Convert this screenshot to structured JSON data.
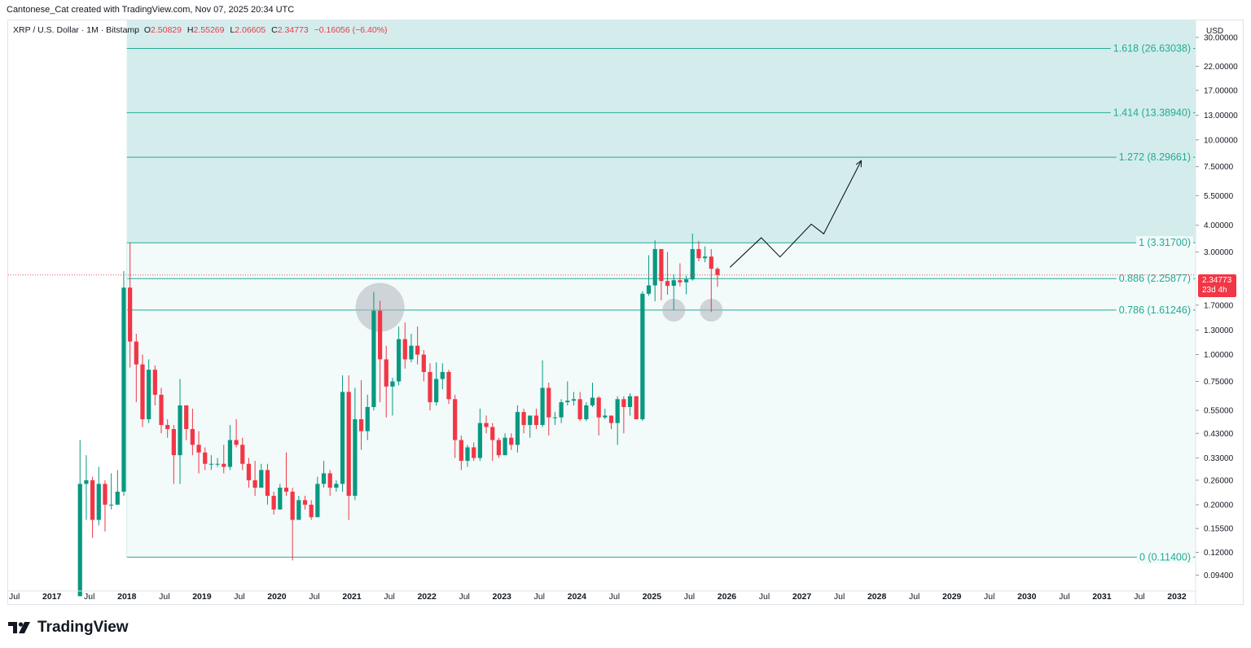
{
  "credit": "Cantonese_Cat created with TradingView.com, Nov 07, 2025 20:34 UTC",
  "legend": {
    "symbol": "XRP / U.S. Dollar · 1M · Bitstamp",
    "o_label": "O",
    "o": "2.50829",
    "h_label": "H",
    "h": "2.55269",
    "l_label": "L",
    "l": "2.06605",
    "c_label": "C",
    "c": "2.34773",
    "change": "−0.16056 (−6.40%)"
  },
  "currency": "USD",
  "last_price": {
    "price": "2.34773",
    "countdown": "23d 4h"
  },
  "brand": "TradingView",
  "colors": {
    "up": "#089981",
    "down": "#f23645",
    "fib": "#22ab94",
    "fib_fill_upper": "#d4edec",
    "fib_fill_lower": "#f2fafa",
    "axis_text": "#131722"
  },
  "chart_data": {
    "type": "candlestick",
    "y_scale": "log",
    "y_range": [
      0.085,
      36
    ],
    "x_range": [
      "2016-06",
      "2032-04"
    ],
    "y_ticks": [
      "30.00000",
      "22.00000",
      "17.00000",
      "13.00000",
      "10.00000",
      "7.50000",
      "5.50000",
      "4.00000",
      "3.00000",
      "1.70000",
      "1.30000",
      "1.00000",
      "0.75000",
      "0.55000",
      "0.43000",
      "0.33000",
      "0.26000",
      "0.20000",
      "0.15500",
      "0.12000",
      "0.09400"
    ],
    "x_ticks": [
      {
        "label": "Jul",
        "date": "2016-07"
      },
      {
        "label": "2017",
        "date": "2017-01"
      },
      {
        "label": "Jul",
        "date": "2017-07"
      },
      {
        "label": "2018",
        "date": "2018-01"
      },
      {
        "label": "Jul",
        "date": "2018-07"
      },
      {
        "label": "2019",
        "date": "2019-01"
      },
      {
        "label": "Jul",
        "date": "2019-07"
      },
      {
        "label": "2020",
        "date": "2020-01"
      },
      {
        "label": "Jul",
        "date": "2020-07"
      },
      {
        "label": "2021",
        "date": "2021-01"
      },
      {
        "label": "Jul",
        "date": "2021-07"
      },
      {
        "label": "2022",
        "date": "2022-01"
      },
      {
        "label": "Jul",
        "date": "2022-07"
      },
      {
        "label": "2023",
        "date": "2023-01"
      },
      {
        "label": "Jul",
        "date": "2023-07"
      },
      {
        "label": "2024",
        "date": "2024-01"
      },
      {
        "label": "Jul",
        "date": "2024-07"
      },
      {
        "label": "2025",
        "date": "2025-01"
      },
      {
        "label": "Jul",
        "date": "2025-07"
      },
      {
        "label": "2026",
        "date": "2026-01"
      },
      {
        "label": "Jul",
        "date": "2026-07"
      },
      {
        "label": "2027",
        "date": "2027-01"
      },
      {
        "label": "Jul",
        "date": "2027-07"
      },
      {
        "label": "2028",
        "date": "2028-01"
      },
      {
        "label": "Jul",
        "date": "2028-07"
      },
      {
        "label": "2029",
        "date": "2029-01"
      },
      {
        "label": "Jul",
        "date": "2029-07"
      },
      {
        "label": "2030",
        "date": "2030-01"
      },
      {
        "label": "Jul",
        "date": "2030-07"
      },
      {
        "label": "2031",
        "date": "2031-01"
      },
      {
        "label": "Jul",
        "date": "2031-07"
      },
      {
        "label": "2032",
        "date": "2032-01"
      }
    ],
    "fib_start_date": "2018-01",
    "fib_levels": [
      {
        "label": "1.618 (26.63038)",
        "value": 26.63038
      },
      {
        "label": "1.414 (13.38940)",
        "value": 13.3894
      },
      {
        "label": "1.272 (8.29661)",
        "value": 8.29661
      },
      {
        "label": "1 (3.31700)",
        "value": 3.317
      },
      {
        "label": "0.886 (2.25877)",
        "value": 2.25877
      },
      {
        "label": "0.786 (1.61246)",
        "value": 1.61246
      },
      {
        "label": "0 (0.11400)",
        "value": 0.114
      }
    ],
    "candles": [
      {
        "d": "2017-05",
        "o": 0.075,
        "h": 0.4,
        "l": 0.075,
        "c": 0.25
      },
      {
        "d": "2017-06",
        "o": 0.25,
        "h": 0.34,
        "l": 0.17,
        "c": 0.26
      },
      {
        "d": "2017-07",
        "o": 0.26,
        "h": 0.27,
        "l": 0.14,
        "c": 0.17
      },
      {
        "d": "2017-08",
        "o": 0.17,
        "h": 0.3,
        "l": 0.16,
        "c": 0.25
      },
      {
        "d": "2017-09",
        "o": 0.25,
        "h": 0.26,
        "l": 0.15,
        "c": 0.2
      },
      {
        "d": "2017-10",
        "o": 0.2,
        "h": 0.28,
        "l": 0.19,
        "c": 0.2
      },
      {
        "d": "2017-11",
        "o": 0.2,
        "h": 0.29,
        "l": 0.2,
        "c": 0.23
      },
      {
        "d": "2017-12",
        "o": 0.23,
        "h": 2.45,
        "l": 0.22,
        "c": 2.05
      },
      {
        "d": "2018-01",
        "o": 2.05,
        "h": 3.317,
        "l": 0.87,
        "c": 1.15
      },
      {
        "d": "2018-02",
        "o": 1.15,
        "h": 1.25,
        "l": 0.6,
        "c": 0.9
      },
      {
        "d": "2018-03",
        "o": 0.9,
        "h": 1.0,
        "l": 0.46,
        "c": 0.5
      },
      {
        "d": "2018-04",
        "o": 0.5,
        "h": 0.95,
        "l": 0.48,
        "c": 0.85
      },
      {
        "d": "2018-05",
        "o": 0.85,
        "h": 0.89,
        "l": 0.58,
        "c": 0.65
      },
      {
        "d": "2018-06",
        "o": 0.65,
        "h": 0.7,
        "l": 0.43,
        "c": 0.47
      },
      {
        "d": "2018-07",
        "o": 0.47,
        "h": 0.5,
        "l": 0.41,
        "c": 0.45
      },
      {
        "d": "2018-08",
        "o": 0.45,
        "h": 0.47,
        "l": 0.25,
        "c": 0.34
      },
      {
        "d": "2018-09",
        "o": 0.34,
        "h": 0.77,
        "l": 0.25,
        "c": 0.58
      },
      {
        "d": "2018-10",
        "o": 0.58,
        "h": 0.58,
        "l": 0.4,
        "c": 0.45
      },
      {
        "d": "2018-11",
        "o": 0.45,
        "h": 0.56,
        "l": 0.34,
        "c": 0.38
      },
      {
        "d": "2018-12",
        "o": 0.38,
        "h": 0.44,
        "l": 0.28,
        "c": 0.35
      },
      {
        "d": "2019-01",
        "o": 0.35,
        "h": 0.37,
        "l": 0.29,
        "c": 0.31
      },
      {
        "d": "2019-02",
        "o": 0.31,
        "h": 0.34,
        "l": 0.29,
        "c": 0.31
      },
      {
        "d": "2019-03",
        "o": 0.31,
        "h": 0.33,
        "l": 0.3,
        "c": 0.31
      },
      {
        "d": "2019-04",
        "o": 0.31,
        "h": 0.38,
        "l": 0.28,
        "c": 0.3
      },
      {
        "d": "2019-05",
        "o": 0.3,
        "h": 0.47,
        "l": 0.29,
        "c": 0.4
      },
      {
        "d": "2019-06",
        "o": 0.4,
        "h": 0.5,
        "l": 0.37,
        "c": 0.38
      },
      {
        "d": "2019-07",
        "o": 0.38,
        "h": 0.41,
        "l": 0.29,
        "c": 0.31
      },
      {
        "d": "2019-08",
        "o": 0.31,
        "h": 0.33,
        "l": 0.24,
        "c": 0.26
      },
      {
        "d": "2019-09",
        "o": 0.26,
        "h": 0.32,
        "l": 0.22,
        "c": 0.24
      },
      {
        "d": "2019-10",
        "o": 0.24,
        "h": 0.31,
        "l": 0.24,
        "c": 0.29
      },
      {
        "d": "2019-11",
        "o": 0.29,
        "h": 0.31,
        "l": 0.2,
        "c": 0.22
      },
      {
        "d": "2019-12",
        "o": 0.22,
        "h": 0.23,
        "l": 0.18,
        "c": 0.19
      },
      {
        "d": "2020-01",
        "o": 0.19,
        "h": 0.25,
        "l": 0.19,
        "c": 0.24
      },
      {
        "d": "2020-02",
        "o": 0.24,
        "h": 0.35,
        "l": 0.22,
        "c": 0.23
      },
      {
        "d": "2020-03",
        "o": 0.23,
        "h": 0.24,
        "l": 0.11,
        "c": 0.17
      },
      {
        "d": "2020-04",
        "o": 0.17,
        "h": 0.22,
        "l": 0.17,
        "c": 0.21
      },
      {
        "d": "2020-05",
        "o": 0.21,
        "h": 0.22,
        "l": 0.19,
        "c": 0.2
      },
      {
        "d": "2020-06",
        "o": 0.2,
        "h": 0.21,
        "l": 0.17,
        "c": 0.175
      },
      {
        "d": "2020-07",
        "o": 0.175,
        "h": 0.27,
        "l": 0.175,
        "c": 0.25
      },
      {
        "d": "2020-08",
        "o": 0.25,
        "h": 0.32,
        "l": 0.24,
        "c": 0.28
      },
      {
        "d": "2020-09",
        "o": 0.28,
        "h": 0.29,
        "l": 0.22,
        "c": 0.24
      },
      {
        "d": "2020-10",
        "o": 0.24,
        "h": 0.26,
        "l": 0.23,
        "c": 0.25
      },
      {
        "d": "2020-11",
        "o": 0.25,
        "h": 0.8,
        "l": 0.23,
        "c": 0.67
      },
      {
        "d": "2020-12",
        "o": 0.67,
        "h": 0.8,
        "l": 0.17,
        "c": 0.22
      },
      {
        "d": "2021-01",
        "o": 0.22,
        "h": 0.7,
        "l": 0.21,
        "c": 0.5
      },
      {
        "d": "2021-02",
        "o": 0.5,
        "h": 0.76,
        "l": 0.36,
        "c": 0.44
      },
      {
        "d": "2021-03",
        "o": 0.44,
        "h": 0.65,
        "l": 0.4,
        "c": 0.57
      },
      {
        "d": "2021-04",
        "o": 0.57,
        "h": 1.96,
        "l": 0.55,
        "c": 1.6
      },
      {
        "d": "2021-05",
        "o": 1.6,
        "h": 1.78,
        "l": 0.6,
        "c": 0.95
      },
      {
        "d": "2021-06",
        "o": 0.95,
        "h": 1.1,
        "l": 0.51,
        "c": 0.71
      },
      {
        "d": "2021-07",
        "o": 0.71,
        "h": 0.78,
        "l": 0.52,
        "c": 0.75
      },
      {
        "d": "2021-08",
        "o": 0.75,
        "h": 1.35,
        "l": 0.72,
        "c": 1.18
      },
      {
        "d": "2021-09",
        "o": 1.18,
        "h": 1.41,
        "l": 0.86,
        "c": 0.95
      },
      {
        "d": "2021-10",
        "o": 0.95,
        "h": 1.25,
        "l": 0.92,
        "c": 1.1
      },
      {
        "d": "2021-11",
        "o": 1.1,
        "h": 1.35,
        "l": 0.9,
        "c": 1.0
      },
      {
        "d": "2021-12",
        "o": 1.0,
        "h": 1.05,
        "l": 0.75,
        "c": 0.83
      },
      {
        "d": "2022-01",
        "o": 0.83,
        "h": 0.91,
        "l": 0.55,
        "c": 0.6
      },
      {
        "d": "2022-02",
        "o": 0.6,
        "h": 0.92,
        "l": 0.58,
        "c": 0.77
      },
      {
        "d": "2022-03",
        "o": 0.77,
        "h": 0.91,
        "l": 0.69,
        "c": 0.83
      },
      {
        "d": "2022-04",
        "o": 0.83,
        "h": 0.85,
        "l": 0.59,
        "c": 0.62
      },
      {
        "d": "2022-05",
        "o": 0.62,
        "h": 0.65,
        "l": 0.33,
        "c": 0.4
      },
      {
        "d": "2022-06",
        "o": 0.4,
        "h": 0.42,
        "l": 0.29,
        "c": 0.32
      },
      {
        "d": "2022-07",
        "o": 0.32,
        "h": 0.38,
        "l": 0.3,
        "c": 0.37
      },
      {
        "d": "2022-08",
        "o": 0.37,
        "h": 0.39,
        "l": 0.32,
        "c": 0.33
      },
      {
        "d": "2022-09",
        "o": 0.33,
        "h": 0.56,
        "l": 0.32,
        "c": 0.48
      },
      {
        "d": "2022-10",
        "o": 0.48,
        "h": 0.52,
        "l": 0.43,
        "c": 0.46
      },
      {
        "d": "2022-11",
        "o": 0.46,
        "h": 0.48,
        "l": 0.32,
        "c": 0.4
      },
      {
        "d": "2022-12",
        "o": 0.4,
        "h": 0.41,
        "l": 0.33,
        "c": 0.34
      },
      {
        "d": "2023-01",
        "o": 0.34,
        "h": 0.43,
        "l": 0.34,
        "c": 0.41
      },
      {
        "d": "2023-02",
        "o": 0.41,
        "h": 0.43,
        "l": 0.36,
        "c": 0.38
      },
      {
        "d": "2023-03",
        "o": 0.38,
        "h": 0.58,
        "l": 0.35,
        "c": 0.54
      },
      {
        "d": "2023-04",
        "o": 0.54,
        "h": 0.56,
        "l": 0.43,
        "c": 0.47
      },
      {
        "d": "2023-05",
        "o": 0.47,
        "h": 0.52,
        "l": 0.41,
        "c": 0.52
      },
      {
        "d": "2023-06",
        "o": 0.52,
        "h": 0.56,
        "l": 0.45,
        "c": 0.47
      },
      {
        "d": "2023-07",
        "o": 0.47,
        "h": 0.94,
        "l": 0.46,
        "c": 0.7
      },
      {
        "d": "2023-08",
        "o": 0.7,
        "h": 0.74,
        "l": 0.42,
        "c": 0.51
      },
      {
        "d": "2023-09",
        "o": 0.51,
        "h": 0.54,
        "l": 0.47,
        "c": 0.51
      },
      {
        "d": "2023-10",
        "o": 0.51,
        "h": 0.62,
        "l": 0.48,
        "c": 0.6
      },
      {
        "d": "2023-11",
        "o": 0.6,
        "h": 0.75,
        "l": 0.58,
        "c": 0.61
      },
      {
        "d": "2023-12",
        "o": 0.61,
        "h": 0.67,
        "l": 0.58,
        "c": 0.62
      },
      {
        "d": "2024-01",
        "o": 0.62,
        "h": 0.67,
        "l": 0.49,
        "c": 0.5
      },
      {
        "d": "2024-02",
        "o": 0.5,
        "h": 0.6,
        "l": 0.49,
        "c": 0.58
      },
      {
        "d": "2024-03",
        "o": 0.58,
        "h": 0.74,
        "l": 0.57,
        "c": 0.63
      },
      {
        "d": "2024-04",
        "o": 0.63,
        "h": 0.64,
        "l": 0.42,
        "c": 0.51
      },
      {
        "d": "2024-05",
        "o": 0.51,
        "h": 0.56,
        "l": 0.5,
        "c": 0.52
      },
      {
        "d": "2024-06",
        "o": 0.52,
        "h": 0.52,
        "l": 0.45,
        "c": 0.48
      },
      {
        "d": "2024-07",
        "o": 0.48,
        "h": 0.64,
        "l": 0.38,
        "c": 0.62
      },
      {
        "d": "2024-08",
        "o": 0.62,
        "h": 0.64,
        "l": 0.43,
        "c": 0.57
      },
      {
        "d": "2024-09",
        "o": 0.57,
        "h": 0.66,
        "l": 0.52,
        "c": 0.64
      },
      {
        "d": "2024-10",
        "o": 0.64,
        "h": 0.64,
        "l": 0.5,
        "c": 0.5
      },
      {
        "d": "2024-11",
        "o": 0.5,
        "h": 1.97,
        "l": 0.49,
        "c": 1.92
      },
      {
        "d": "2024-12",
        "o": 1.92,
        "h": 2.9,
        "l": 1.88,
        "c": 2.1
      },
      {
        "d": "2025-01",
        "o": 2.1,
        "h": 3.4,
        "l": 1.77,
        "c": 3.1
      },
      {
        "d": "2025-02",
        "o": 3.1,
        "h": 3.1,
        "l": 1.79,
        "c": 2.2
      },
      {
        "d": "2025-03",
        "o": 2.2,
        "h": 3.0,
        "l": 1.9,
        "c": 2.09
      },
      {
        "d": "2025-04",
        "o": 2.09,
        "h": 2.36,
        "l": 1.61,
        "c": 2.22
      },
      {
        "d": "2025-05",
        "o": 2.22,
        "h": 2.66,
        "l": 2.08,
        "c": 2.17
      },
      {
        "d": "2025-06",
        "o": 2.17,
        "h": 2.33,
        "l": 1.91,
        "c": 2.24
      },
      {
        "d": "2025-07",
        "o": 2.24,
        "h": 3.66,
        "l": 2.21,
        "c": 3.1
      },
      {
        "d": "2025-08",
        "o": 3.1,
        "h": 3.38,
        "l": 2.72,
        "c": 2.81
      },
      {
        "d": "2025-09",
        "o": 2.81,
        "h": 3.19,
        "l": 2.69,
        "c": 2.86
      },
      {
        "d": "2025-10",
        "o": 2.86,
        "h": 3.1,
        "l": 1.58,
        "c": 2.51
      },
      {
        "d": "2025-11",
        "o": 2.50829,
        "h": 2.55269,
        "l": 2.06605,
        "c": 2.34773
      }
    ],
    "projection": [
      {
        "d": "2026-01",
        "v": 2.55
      },
      {
        "d": "2026-06",
        "v": 3.5
      },
      {
        "d": "2026-09",
        "v": 2.85
      },
      {
        "d": "2027-02",
        "v": 4.05
      },
      {
        "d": "2027-04",
        "v": 3.65
      },
      {
        "d": "2027-10",
        "v": 8.0
      }
    ],
    "highlights": [
      {
        "d": "2021-05",
        "v": 1.66,
        "size": "large"
      },
      {
        "d": "2025-04",
        "v": 1.61,
        "size": "small"
      },
      {
        "d": "2025-10",
        "v": 1.61,
        "size": "small"
      }
    ]
  }
}
